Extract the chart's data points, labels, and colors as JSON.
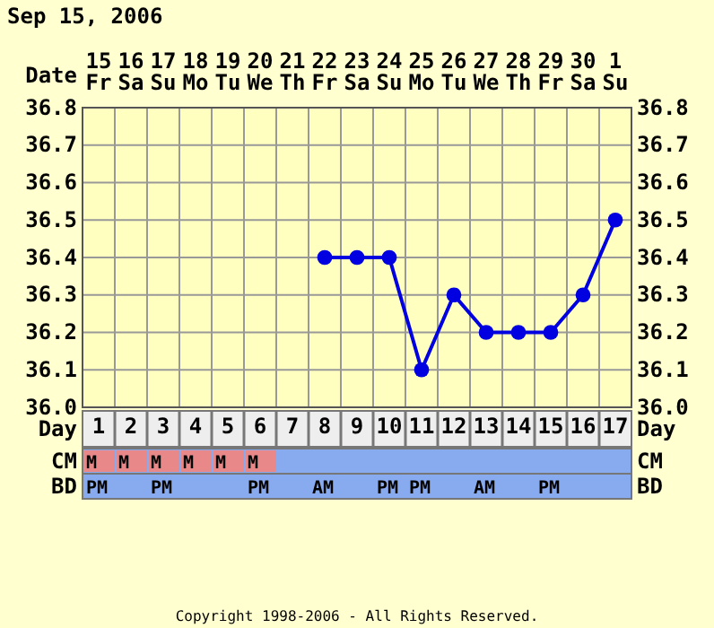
{
  "chart_data": [
    {
      "type": "line",
      "title": "Sep 15, 2006",
      "xlabel": "Date",
      "x2label": "Day",
      "x": [
        "2006-09-22",
        "2006-09-23",
        "2006-09-24",
        "2006-09-25",
        "2006-09-26",
        "2006-09-27",
        "2006-09-28",
        "2006-09-29",
        "2006-09-30",
        "2006-10-01"
      ],
      "xlim": [
        "2006-09-14T12:00",
        "2006-10-01T12:00"
      ],
      "xticks": [
        {
          "value": "2006-09-15",
          "label": "15 Fr"
        },
        {
          "value": "2006-09-16",
          "label": "16 Sa"
        },
        {
          "value": "2006-09-17",
          "label": "17 Su"
        },
        {
          "value": "2006-09-18",
          "label": "18 Mo"
        },
        {
          "value": "2006-09-19",
          "label": "19 Tu"
        },
        {
          "value": "2006-09-20",
          "label": "20 We"
        },
        {
          "value": "2006-09-21",
          "label": "21 Th"
        },
        {
          "value": "2006-09-22",
          "label": "22 Fr"
        },
        {
          "value": "2006-09-23",
          "label": "23 Sa"
        },
        {
          "value": "2006-09-24",
          "label": "24 Su"
        },
        {
          "value": "2006-09-25",
          "label": "25 Mo"
        },
        {
          "value": "2006-09-26",
          "label": "26 Tu"
        },
        {
          "value": "2006-09-27",
          "label": "27 We"
        },
        {
          "value": "2006-09-28",
          "label": "28 Th"
        },
        {
          "value": "2006-09-29",
          "label": "29 Fr"
        },
        {
          "value": "2006-09-30",
          "label": "30 Sa"
        },
        {
          "value": "2006-10-01",
          "label": "1 Su"
        }
      ],
      "x2lim": [
        0.5,
        17.5
      ],
      "x2ticks": [
        1,
        2,
        3,
        4,
        5,
        6,
        7,
        8,
        9,
        10,
        11,
        12,
        13,
        14,
        15,
        16,
        17
      ],
      "series": [
        {
          "color": "#0000e0",
          "values": [
            36.4,
            36.4,
            36.4,
            36.1,
            36.3,
            36.2,
            36.2,
            36.2,
            36.3,
            36.5
          ]
        }
      ],
      "ylim": [
        36.0,
        36.8
      ],
      "yticks": [
        {
          "value": 36.0,
          "label": "36.0"
        },
        36.1,
        36.2,
        36.3,
        36.4,
        36.5,
        36.6,
        36.7,
        36.8
      ],
      "y2lim": [
        36.0,
        36.8
      ],
      "y2ticks": [
        {
          "value": 36.0,
          "label": "36.0"
        },
        36.1,
        36.2,
        36.3,
        36.4,
        36.5,
        36.6,
        36.7,
        36.8
      ],
      "grid": true,
      "marker": "circle",
      "line_style": "solid",
      "annotations": [
        "Copyright 1998-2006 - All Rights Reserved."
      ]
    },
    {
      "type": "other",
      "y_categories": [
        "CM",
        "BD"
      ],
      "y2_categories": [
        "CM",
        "BD"
      ],
      "cell_labels": [
        [
          "M",
          "M",
          "M",
          "M",
          "M",
          "M",
          null,
          null,
          null,
          null,
          null,
          null,
          null,
          null,
          null,
          null,
          null
        ],
        [
          "PM",
          null,
          "PM",
          null,
          null,
          "PM",
          null,
          "AM",
          null,
          "PM",
          "PM",
          null,
          "AM",
          null,
          "PM",
          null,
          null
        ]
      ]
    }
  ]
}
